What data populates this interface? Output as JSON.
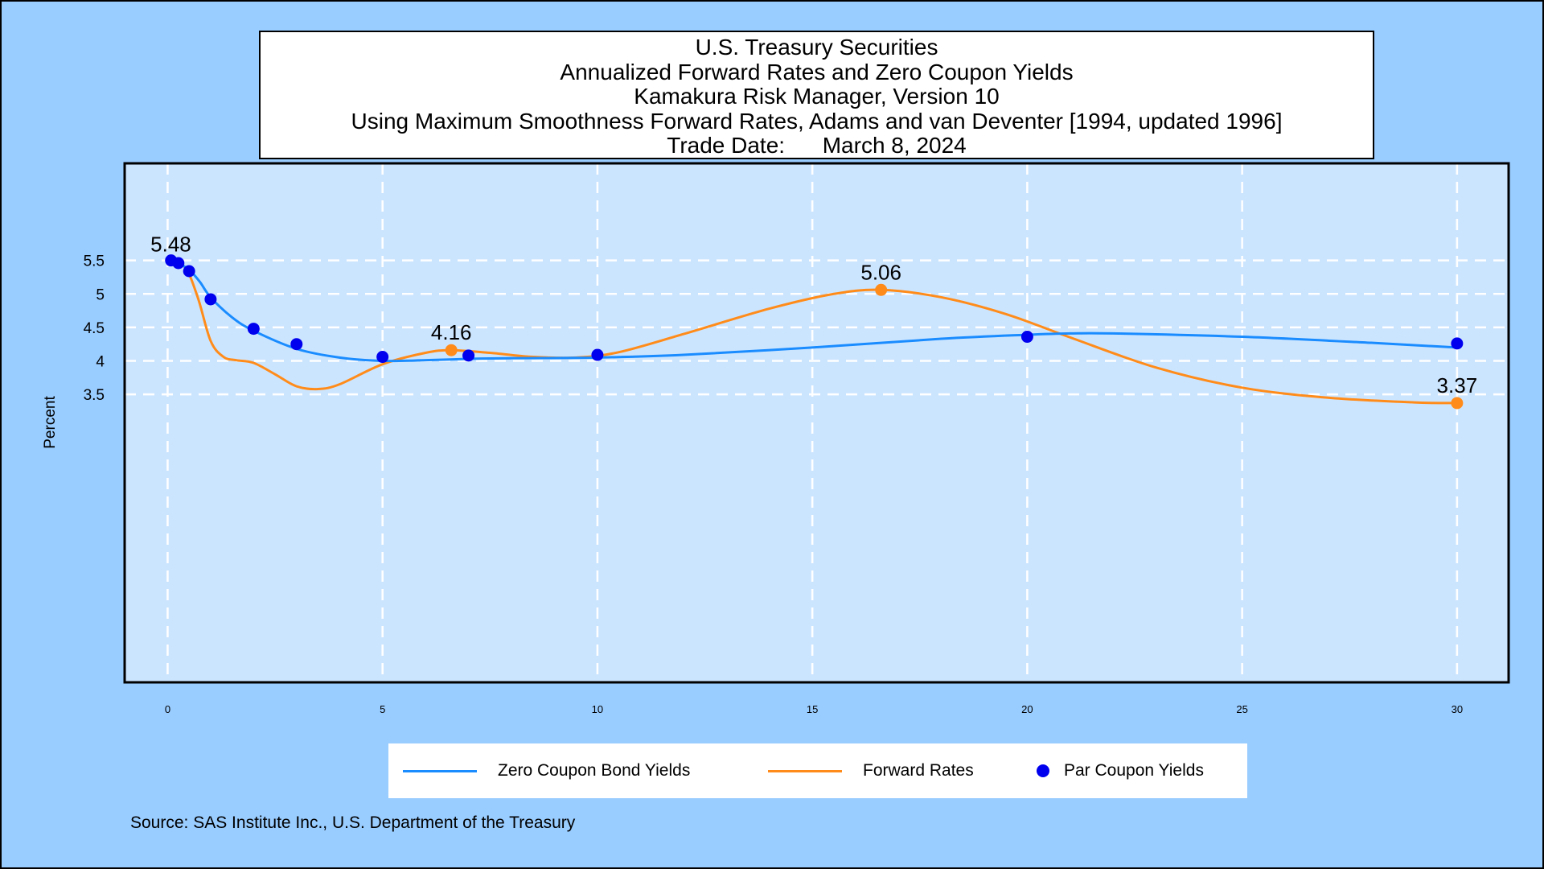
{
  "title_lines": [
    "U.S. Treasury Securities",
    "Annualized Forward Rates and Zero Coupon Yields",
    "Kamakura Risk Manager, Version 10",
    "Using Maximum Smoothness Forward Rates, Adams and van Deventer [1994, updated 1996]",
    "Trade Date:      March 8, 2024"
  ],
  "source": "Source: SAS Institute Inc., U.S. Department of the Treasury",
  "colors": {
    "zero": "#1a8cff",
    "forward": "#ff8c1a",
    "par": "#0000ee",
    "plot_bg": "#cce5ff",
    "page_bg": "#99ccff",
    "grid": "#ffffff"
  },
  "chart_data": {
    "type": "line",
    "xlabel": "",
    "ylabel": "Percent",
    "xlim": [
      -1,
      31.2
    ],
    "ylim": [
      -0.8,
      6.95
    ],
    "x_ticks": [
      0,
      5,
      10,
      15,
      20,
      25,
      30
    ],
    "y_ticks": [
      3.5,
      4,
      4.5,
      5,
      5.5
    ],
    "y_tick_labels": [
      "3.5",
      "4",
      "4.5",
      "5",
      "5.5"
    ],
    "grid": true,
    "legend_position": "bottom",
    "series": [
      {
        "name": "Zero Coupon Bond Yields",
        "style": "line",
        "x": [
          0,
          0.25,
          0.5,
          0.75,
          1,
          1.5,
          2,
          3,
          4,
          5,
          6,
          7,
          8,
          10,
          12,
          15,
          18,
          20,
          21,
          22,
          25,
          28,
          30
        ],
        "y": [
          5.48,
          5.45,
          5.36,
          5.18,
          4.95,
          4.65,
          4.45,
          4.18,
          4.05,
          4.0,
          4.01,
          4.03,
          4.04,
          4.05,
          4.09,
          4.2,
          4.33,
          4.39,
          4.41,
          4.41,
          4.36,
          4.27,
          4.2
        ]
      },
      {
        "name": "Forward Rates",
        "style": "line",
        "x": [
          0,
          0.4,
          0.7,
          1.0,
          1.3,
          1.6,
          2.0,
          2.5,
          3.0,
          3.5,
          4.0,
          5.0,
          6.0,
          6.6,
          7.5,
          8.5,
          9.5,
          10.5,
          12,
          14,
          15.5,
          16.6,
          18,
          19.5,
          21,
          23,
          25,
          27,
          29,
          30
        ],
        "y": [
          5.48,
          5.4,
          4.95,
          4.3,
          4.06,
          4.01,
          3.97,
          3.8,
          3.62,
          3.58,
          3.65,
          3.95,
          4.12,
          4.16,
          4.12,
          4.06,
          4.05,
          4.13,
          4.4,
          4.78,
          5.0,
          5.06,
          4.95,
          4.7,
          4.35,
          3.9,
          3.6,
          3.45,
          3.38,
          3.37
        ]
      },
      {
        "name": "Par Coupon Yields",
        "style": "points",
        "x": [
          0.08,
          0.25,
          0.5,
          1,
          2,
          3,
          5,
          7,
          10,
          20,
          30
        ],
        "y": [
          5.5,
          5.46,
          5.34,
          4.92,
          4.48,
          4.25,
          4.06,
          4.08,
          4.09,
          4.36,
          4.26
        ]
      }
    ],
    "annotations": [
      {
        "x": 0,
        "y": 5.48,
        "label": "5.48",
        "marker": false
      },
      {
        "x": 6.6,
        "y": 4.16,
        "label": "4.16",
        "marker": true
      },
      {
        "x": 16.6,
        "y": 5.06,
        "label": "5.06",
        "marker": true
      },
      {
        "x": 30,
        "y": 3.37,
        "label": "3.37",
        "marker": true
      }
    ]
  }
}
